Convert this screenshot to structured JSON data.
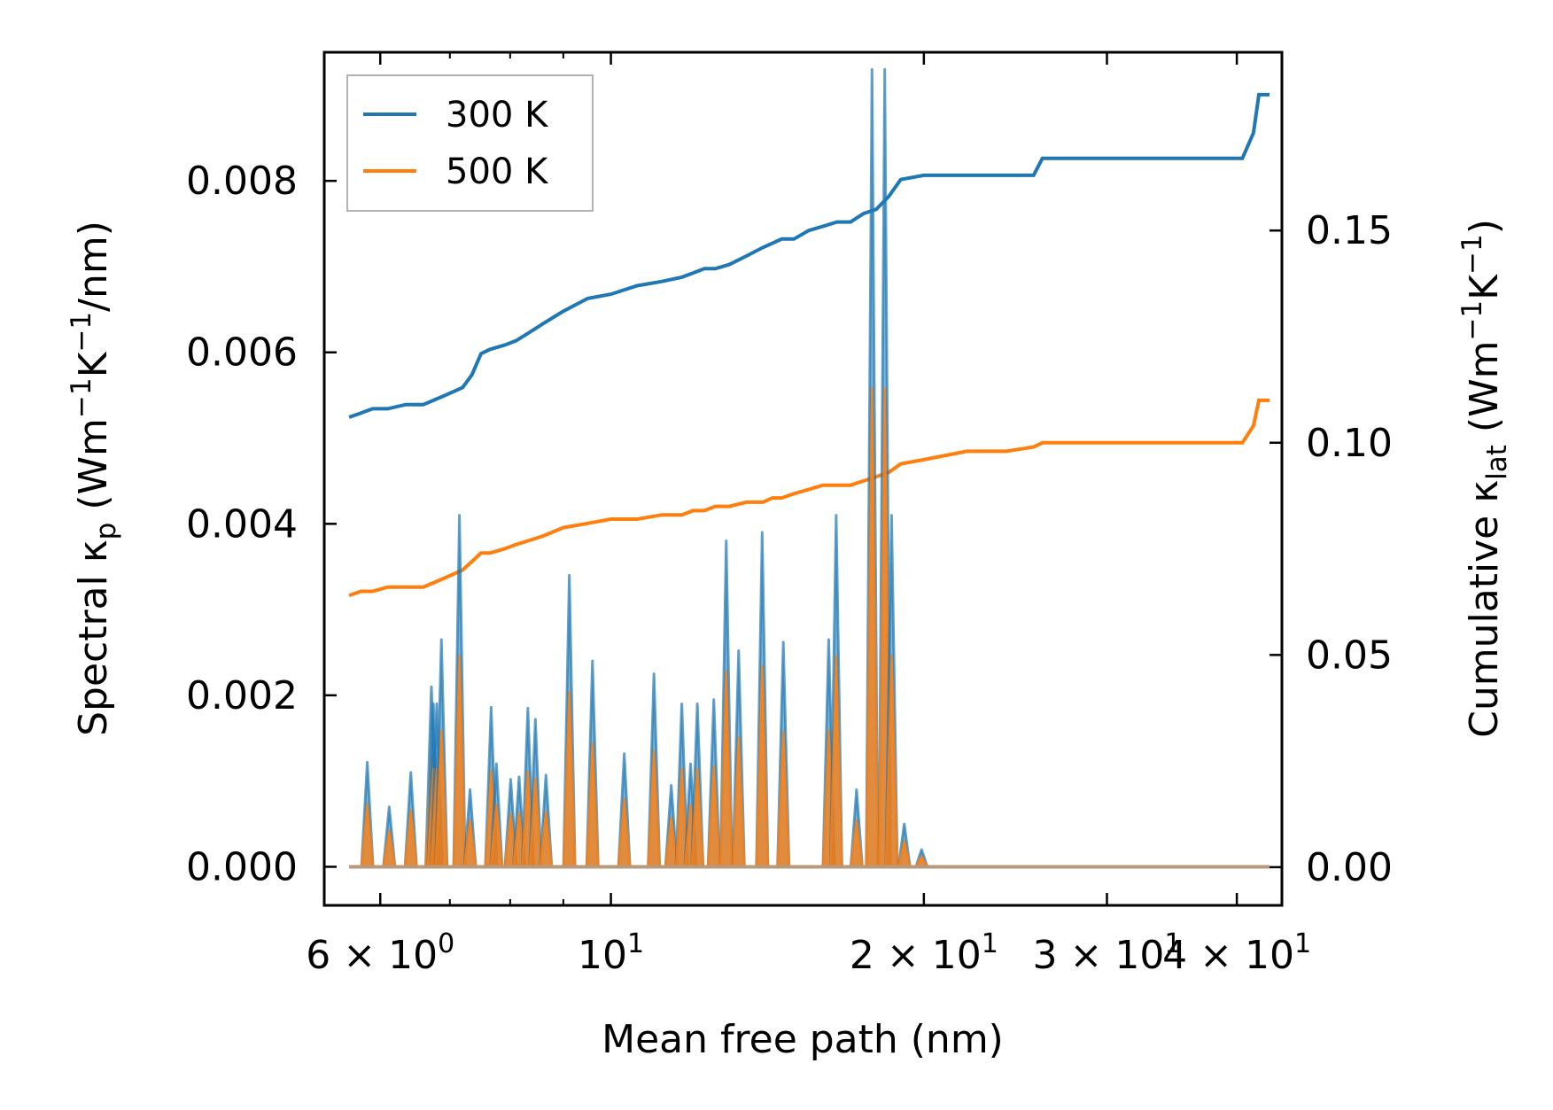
{
  "chart_data": {
    "type": "line",
    "title": "",
    "xlabel": "Mean free path (nm)",
    "x_scale": "log",
    "xlim": [
      5.3,
      44.2
    ],
    "x_ticks": [
      {
        "value": 6,
        "mantissa": "6",
        "times": "×",
        "base": "10",
        "exponent": "0"
      },
      {
        "value": 10,
        "mantissa": "",
        "times": "",
        "base": "10",
        "exponent": "1"
      },
      {
        "value": 20,
        "mantissa": "2",
        "times": "×",
        "base": "10",
        "exponent": "1"
      },
      {
        "value": 30,
        "mantissa": "3",
        "times": "×",
        "base": "10",
        "exponent": "1"
      },
      {
        "value": 40,
        "mantissa": "4",
        "times": "×",
        "base": "10",
        "exponent": "1"
      }
    ],
    "left_axis": {
      "label_main": "Spectral κ",
      "label_sub": "p",
      "label_units_prefix": " (Wm",
      "label_exp1": "−1",
      "label_mid": "K",
      "label_exp2": "−1",
      "label_suffix": "/nm)",
      "ylim": [
        -0.00045,
        0.0095
      ],
      "ticks": [
        "0.000",
        "0.002",
        "0.004",
        "0.006",
        "0.008"
      ],
      "tick_values": [
        0.0,
        0.002,
        0.004,
        0.006,
        0.008
      ]
    },
    "right_axis": {
      "label_main": "Cumulative κ",
      "label_sub": "lat",
      "label_units_prefix": " (Wm",
      "label_exp1": "−1",
      "label_mid": "K",
      "label_exp2": "−1",
      "label_suffix": ")",
      "ylim": [
        -0.009,
        0.192
      ],
      "ticks": [
        "0.00",
        "0.05",
        "0.10",
        "0.15"
      ],
      "tick_values": [
        0.0,
        0.05,
        0.1,
        0.15
      ]
    },
    "legend": {
      "location": "upper-left",
      "entries": [
        "300 K",
        "500 K"
      ]
    },
    "series_colors": {
      "300 K": "#1f77b4",
      "500 K": "#ff7f0e"
    },
    "series": [
      {
        "name": "300 K",
        "axis": "right",
        "kind": "cumulative",
        "x": [
          5.6,
          5.75,
          5.9,
          6.1,
          6.35,
          6.6,
          6.9,
          7.2,
          7.35,
          7.5,
          7.65,
          7.9,
          8.1,
          8.35,
          8.6,
          9.0,
          9.5,
          10.0,
          10.6,
          11.2,
          11.7,
          12.0,
          12.3,
          12.6,
          13.0,
          13.5,
          14.0,
          14.3,
          14.6,
          15.0,
          15.5,
          16.0,
          16.5,
          17.0,
          17.5,
          18.0,
          18.5,
          19.0,
          20.0,
          22.0,
          24.0,
          25.5,
          26.0,
          27.0,
          30.0,
          34.0,
          39.0,
          40.5,
          41.5,
          42.0,
          43.0
        ],
        "y": [
          0.106,
          0.107,
          0.108,
          0.108,
          0.109,
          0.109,
          0.111,
          0.113,
          0.116,
          0.121,
          0.122,
          0.123,
          0.124,
          0.126,
          0.128,
          0.131,
          0.134,
          0.135,
          0.137,
          0.138,
          0.139,
          0.14,
          0.141,
          0.141,
          0.142,
          0.144,
          0.146,
          0.147,
          0.148,
          0.148,
          0.15,
          0.151,
          0.152,
          0.152,
          0.154,
          0.155,
          0.158,
          0.162,
          0.163,
          0.163,
          0.163,
          0.163,
          0.167,
          0.167,
          0.167,
          0.167,
          0.167,
          0.167,
          0.173,
          0.182,
          0.182
        ]
      },
      {
        "name": "500 K",
        "axis": "right",
        "kind": "cumulative",
        "x": [
          5.6,
          5.75,
          5.9,
          6.1,
          6.35,
          6.6,
          6.9,
          7.2,
          7.35,
          7.5,
          7.65,
          7.9,
          8.1,
          8.35,
          8.6,
          9.0,
          9.5,
          10.0,
          10.6,
          11.2,
          11.7,
          12.0,
          12.3,
          12.6,
          13.0,
          13.5,
          14.0,
          14.3,
          14.6,
          15.0,
          15.5,
          16.0,
          16.5,
          17.0,
          17.5,
          18.0,
          18.5,
          19.0,
          20.0,
          22.0,
          24.0,
          25.5,
          26.0,
          27.0,
          30.0,
          34.0,
          39.0,
          40.5,
          41.5,
          42.0,
          43.0
        ],
        "y": [
          0.064,
          0.065,
          0.065,
          0.066,
          0.066,
          0.066,
          0.068,
          0.07,
          0.072,
          0.074,
          0.074,
          0.075,
          0.076,
          0.077,
          0.078,
          0.08,
          0.081,
          0.082,
          0.082,
          0.083,
          0.083,
          0.084,
          0.084,
          0.085,
          0.085,
          0.086,
          0.086,
          0.087,
          0.087,
          0.088,
          0.089,
          0.09,
          0.09,
          0.09,
          0.091,
          0.092,
          0.093,
          0.095,
          0.096,
          0.098,
          0.098,
          0.099,
          0.1,
          0.1,
          0.1,
          0.1,
          0.1,
          0.1,
          0.104,
          0.11,
          0.11
        ]
      },
      {
        "name": "300 K",
        "axis": "left",
        "kind": "spectral",
        "peaks_x": [
          5.83,
          6.12,
          6.42,
          6.72,
          6.75,
          6.8,
          6.87,
          7.15,
          7.32,
          7.67,
          7.76,
          8.01,
          8.16,
          8.32,
          8.46,
          8.66,
          9.12,
          9.6,
          10.3,
          11.0,
          11.43,
          11.7,
          11.93,
          12.11,
          12.56,
          12.91,
          13.27,
          13.98,
          14.65,
          16.2,
          16.47,
          17.23,
          17.83,
          18.34,
          18.62,
          19.15,
          19.9
        ],
        "peaks_y": [
          0.00122,
          0.0007,
          0.0011,
          0.0021,
          0.0019,
          0.0019,
          0.00265,
          0.0041,
          0.0009,
          0.00186,
          0.0012,
          0.00102,
          0.00105,
          0.00185,
          0.00172,
          0.00107,
          0.0034,
          0.0024,
          0.00132,
          0.00225,
          0.00095,
          0.0019,
          0.0012,
          0.0019,
          0.00195,
          0.0038,
          0.00252,
          0.0039,
          0.00262,
          0.00265,
          0.0041,
          0.0009,
          0.0093,
          0.0093,
          0.0041,
          0.0005,
          0.0002
        ]
      }
    ]
  }
}
